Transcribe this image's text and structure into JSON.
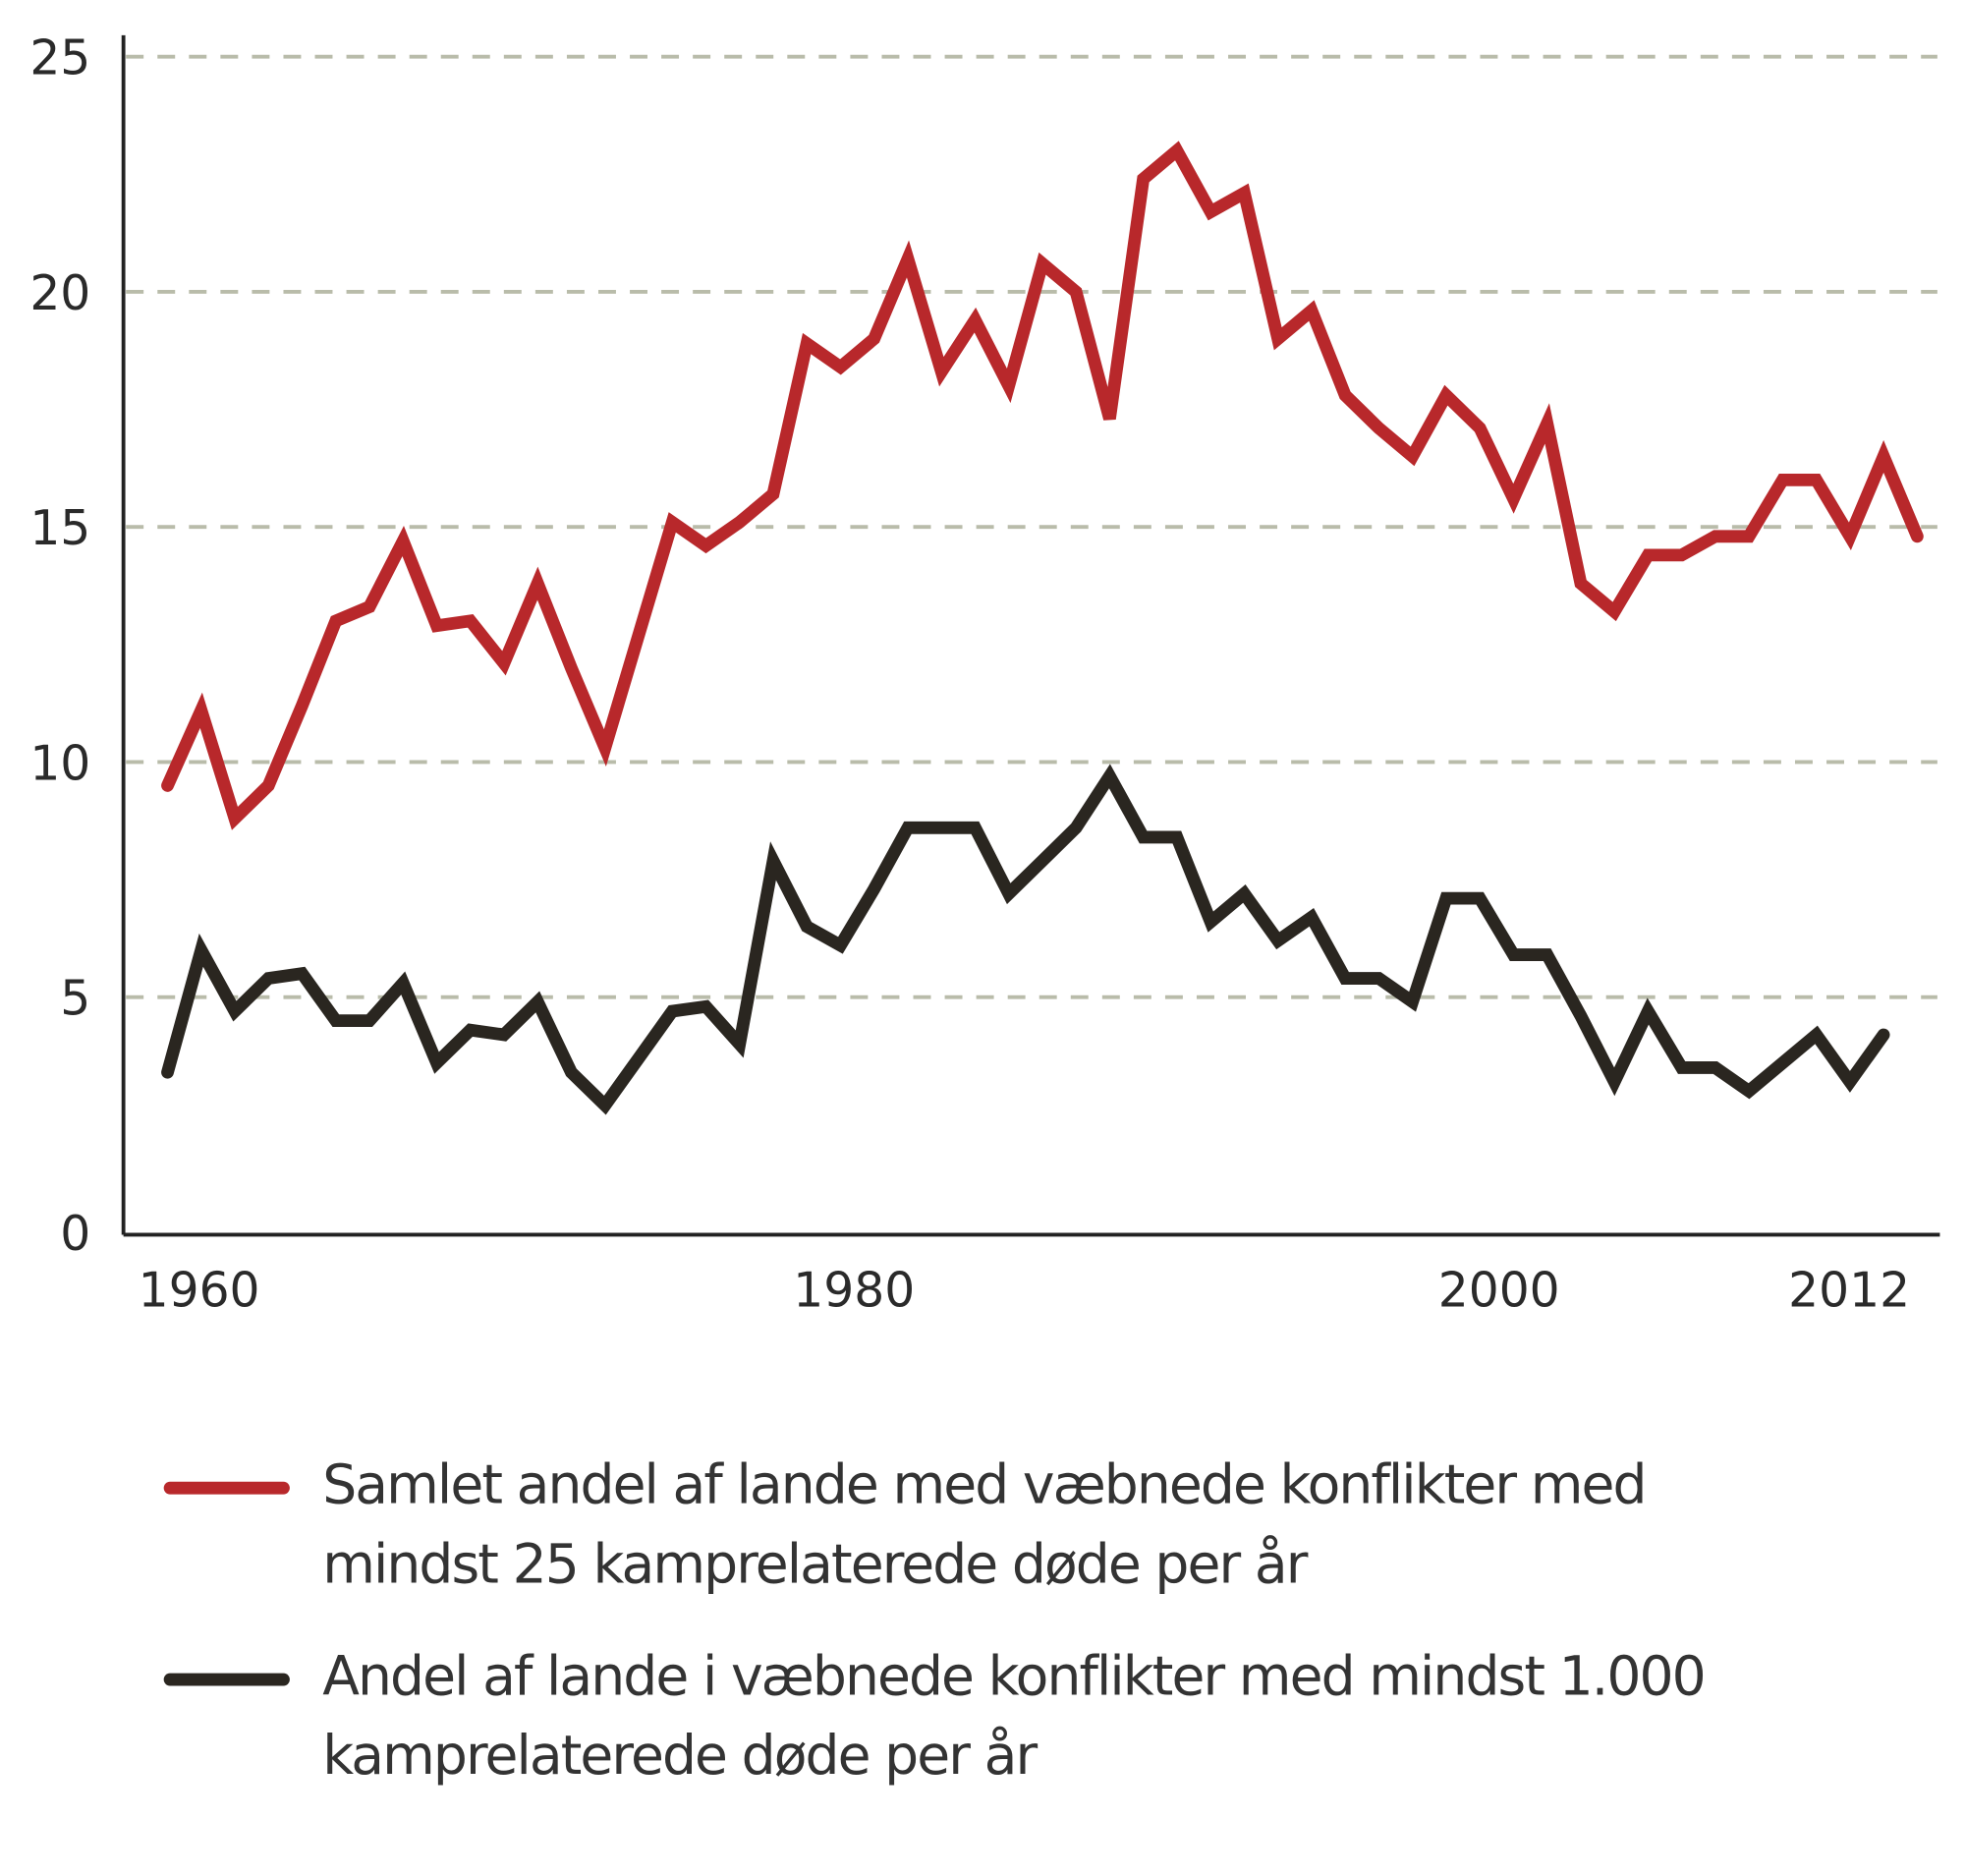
{
  "chart_data": {
    "type": "line",
    "title": "",
    "xlabel": "",
    "ylabel": "",
    "ylim": [
      0,
      25
    ],
    "yticks": [
      0,
      5,
      10,
      15,
      20,
      25
    ],
    "xtick_labels": [
      "1960",
      "1980",
      "2000",
      "2012"
    ],
    "grid": "horizontal dashed",
    "legend_position": "bottom",
    "x": [
      1960,
      1961,
      1962,
      1963,
      1964,
      1965,
      1966,
      1967,
      1968,
      1969,
      1970,
      1971,
      1972,
      1973,
      1974,
      1975,
      1976,
      1977,
      1978,
      1979,
      1980,
      1981,
      1982,
      1983,
      1984,
      1985,
      1986,
      1987,
      1988,
      1989,
      1990,
      1991,
      1992,
      1993,
      1994,
      1995,
      1996,
      1997,
      1998,
      1999,
      2000,
      2001,
      2002,
      2003,
      2004,
      2005,
      2006,
      2007,
      2008,
      2009,
      2010,
      2011,
      2012
    ],
    "series": [
      {
        "name": "Samlet andel af lande med væbnede konflikter med mindst 25 kamprelaterede døde per år",
        "color": "#b8282b",
        "values": [
          9.5,
          11.1,
          8.8,
          9.5,
          11.2,
          13.0,
          13.3,
          14.7,
          12.9,
          13.0,
          12.1,
          13.8,
          12.0,
          10.3,
          12.7,
          15.1,
          14.6,
          15.1,
          15.7,
          18.9,
          18.4,
          19.0,
          20.7,
          18.3,
          19.4,
          18.0,
          20.6,
          20.0,
          17.3,
          22.4,
          23.0,
          21.7,
          22.1,
          19.0,
          19.6,
          17.8,
          17.1,
          16.5,
          17.8,
          17.1,
          15.6,
          17.2,
          13.8,
          13.2,
          14.4,
          14.4,
          14.8,
          14.8,
          16.0,
          16.0,
          14.8,
          16.5,
          14.8
        ]
      },
      {
        "name": "Andel af lande i væbnede konflikter med mindst 1.000 kamprelaterede døde per år",
        "color": "#2a2620",
        "values": [
          3.4,
          6.0,
          4.7,
          5.4,
          5.5,
          4.5,
          4.5,
          5.3,
          3.6,
          4.3,
          4.2,
          4.9,
          3.4,
          2.7,
          3.7,
          4.7,
          4.8,
          4.0,
          7.9,
          6.5,
          6.1,
          7.3,
          8.6,
          8.6,
          8.6,
          7.2,
          7.9,
          8.6,
          9.7,
          8.4,
          8.4,
          6.6,
          7.2,
          6.2,
          6.7,
          5.4,
          5.4,
          4.9,
          7.1,
          7.1,
          5.9,
          5.9,
          4.6,
          3.2,
          4.7,
          3.5,
          3.5,
          3.0,
          3.6,
          4.2,
          3.2,
          4.2,
          null
        ]
      }
    ]
  },
  "legend": [
    {
      "line1": "Samlet andel af lande med væbnede konflikter med",
      "line2": "mindst 25 kamprelaterede døde per år"
    },
    {
      "line1": "Andel af lande i væbnede konflikter med mindst 1.000",
      "line2": "kamprelaterede døde per år"
    }
  ]
}
